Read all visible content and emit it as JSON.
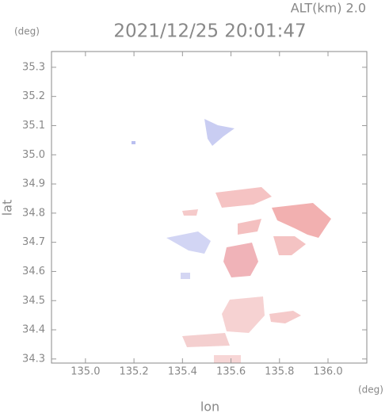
{
  "chart_data": {
    "type": "map",
    "title": "2021/12/25 20:01:47",
    "subtitle": "ALT(km) 2.0",
    "y_unit": "(deg)",
    "x_unit": "(deg)",
    "xlabel": "lon",
    "ylabel": "lat",
    "xlim": [
      134.86,
      136.16
    ],
    "ylim": [
      34.286,
      35.354
    ],
    "xticks": [
      {
        "value": 135,
        "label": "135.0"
      },
      135.2,
      135.4,
      135.6,
      135.8,
      {
        "value": 136,
        "label": "136.0"
      }
    ],
    "yticks": [
      34.3,
      34.4,
      34.5,
      34.6,
      34.7,
      34.8,
      34.9,
      {
        "value": 35,
        "label": "35.0"
      },
      35.1,
      35.2,
      35.3
    ]
  }
}
